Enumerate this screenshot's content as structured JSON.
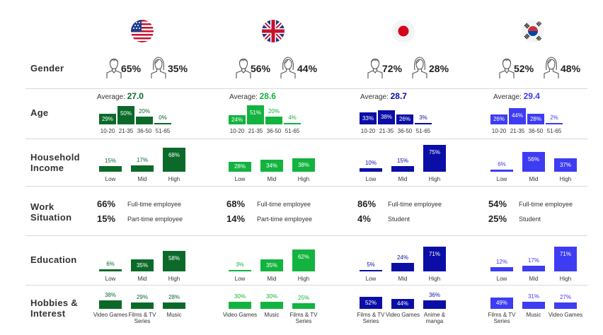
{
  "colors": {
    "us": "#0b6a2a",
    "uk": "#12b33f",
    "jp": "#0a0ea6",
    "kr": "#3d3cf2",
    "us_avg": "#0b6a2a",
    "uk_avg": "#12b33f",
    "jp_avg": "#0a0ea6",
    "kr_avg": "#3d3cf2",
    "divider": "#d9d9d9"
  },
  "flags": [
    "us-flag-icon",
    "uk-flag-icon",
    "japan-flag-icon",
    "korea-flag-icon"
  ],
  "row_labels": {
    "gender": "Gender",
    "age": "Age",
    "household_income_1": "Household",
    "household_income_2": "Income",
    "work_1": "Work",
    "work_2": "Situation",
    "education": "Education",
    "hobbies_1": "Hobbies &",
    "hobbies_2": "Interest"
  },
  "age_average_label": "Average:",
  "chart_data": [
    {
      "type": "table",
      "title": "Gender",
      "columns": [
        "Male",
        "Female"
      ],
      "rows": [
        {
          "country": "US",
          "values": [
            "65%",
            "35%"
          ]
        },
        {
          "country": "UK",
          "values": [
            "56%",
            "44%"
          ]
        },
        {
          "country": "Japan",
          "values": [
            "72%",
            "28%"
          ]
        },
        {
          "country": "Korea",
          "values": [
            "52%",
            "48%"
          ]
        }
      ]
    },
    {
      "type": "bar",
      "title": "Age",
      "categories": [
        "10-20",
        "21-35",
        "36-50",
        "51-65"
      ],
      "series": [
        {
          "country": "US",
          "average": "27.0",
          "values": [
            29,
            50,
            20,
            0
          ],
          "labels": [
            "29%",
            "50%",
            "20%",
            "0%"
          ]
        },
        {
          "country": "UK",
          "average": "28.6",
          "values": [
            24,
            51,
            20,
            4
          ],
          "labels": [
            "24%",
            "51%",
            "20%",
            "4%"
          ]
        },
        {
          "country": "Japan",
          "average": "28.7",
          "values": [
            33,
            38,
            26,
            3
          ],
          "labels": [
            "33%",
            "38%",
            "26%",
            "3%"
          ]
        },
        {
          "country": "Korea",
          "average": "29.4",
          "values": [
            26,
            44,
            28,
            2
          ],
          "labels": [
            "26%",
            "44%",
            "28%",
            "2%"
          ]
        }
      ]
    },
    {
      "type": "bar",
      "title": "Household Income",
      "categories": [
        "Low",
        "Mid",
        "High"
      ],
      "series": [
        {
          "country": "US",
          "values": [
            15,
            17,
            68
          ],
          "labels": [
            "15%",
            "17%",
            "68%"
          ]
        },
        {
          "country": "UK",
          "values": [
            28,
            34,
            38
          ],
          "labels": [
            "28%",
            "34%",
            "38%"
          ]
        },
        {
          "country": "Japan",
          "values": [
            10,
            15,
            75
          ],
          "labels": [
            "10%",
            "15%",
            "75%"
          ]
        },
        {
          "country": "Korea",
          "values": [
            6,
            56,
            37
          ],
          "labels": [
            "6%",
            "56%",
            "37%"
          ]
        }
      ]
    },
    {
      "type": "table",
      "title": "Work Situation",
      "rows": [
        {
          "country": "US",
          "items": [
            {
              "pct": "66%",
              "label": "Full-time employee"
            },
            {
              "pct": "15%",
              "label": "Part-time employee"
            }
          ]
        },
        {
          "country": "UK",
          "items": [
            {
              "pct": "68%",
              "label": "Full-time employee"
            },
            {
              "pct": "14%",
              "label": "Part-time employee"
            }
          ]
        },
        {
          "country": "Japan",
          "items": [
            {
              "pct": "86%",
              "label": "Full-time employee"
            },
            {
              "pct": "4%",
              "label": "Student"
            }
          ]
        },
        {
          "country": "Korea",
          "items": [
            {
              "pct": "54%",
              "label": "Full-time employee"
            },
            {
              "pct": "25%",
              "label": "Student"
            }
          ]
        }
      ]
    },
    {
      "type": "bar",
      "title": "Education",
      "categories": [
        "Low",
        "Mid",
        "High"
      ],
      "series": [
        {
          "country": "US",
          "values": [
            6,
            35,
            58
          ],
          "labels": [
            "6%",
            "35%",
            "58%"
          ]
        },
        {
          "country": "UK",
          "values": [
            3,
            35,
            62
          ],
          "labels": [
            "3%",
            "35%",
            "62%"
          ]
        },
        {
          "country": "Japan",
          "values": [
            5,
            24,
            71
          ],
          "labels": [
            "5%",
            "24%",
            "71%"
          ]
        },
        {
          "country": "Korea",
          "values": [
            12,
            17,
            71
          ],
          "labels": [
            "12%",
            "17%",
            "71%"
          ]
        }
      ]
    },
    {
      "type": "bar",
      "title": "Hobbies & Interest",
      "series": [
        {
          "country": "US",
          "categories": [
            "Video Games",
            "Films & TV Series",
            "Music"
          ],
          "values": [
            38,
            29,
            28
          ],
          "labels": [
            "38%",
            "29%",
            "28%"
          ]
        },
        {
          "country": "UK",
          "categories": [
            "Video Games",
            "Music",
            "Films & TV Series"
          ],
          "values": [
            30,
            30,
            25
          ],
          "labels": [
            "30%",
            "30%",
            "25%"
          ]
        },
        {
          "country": "Japan",
          "categories": [
            "Films & TV Series",
            "Video Games",
            "Anime & manga"
          ],
          "values": [
            52,
            44,
            36
          ],
          "labels": [
            "52%",
            "44%",
            "36%"
          ]
        },
        {
          "country": "Korea",
          "categories": [
            "Films & TV Series",
            "Music",
            "Video Games"
          ],
          "values": [
            49,
            31,
            27
          ],
          "labels": [
            "49%",
            "31%",
            "27%"
          ]
        }
      ]
    }
  ]
}
